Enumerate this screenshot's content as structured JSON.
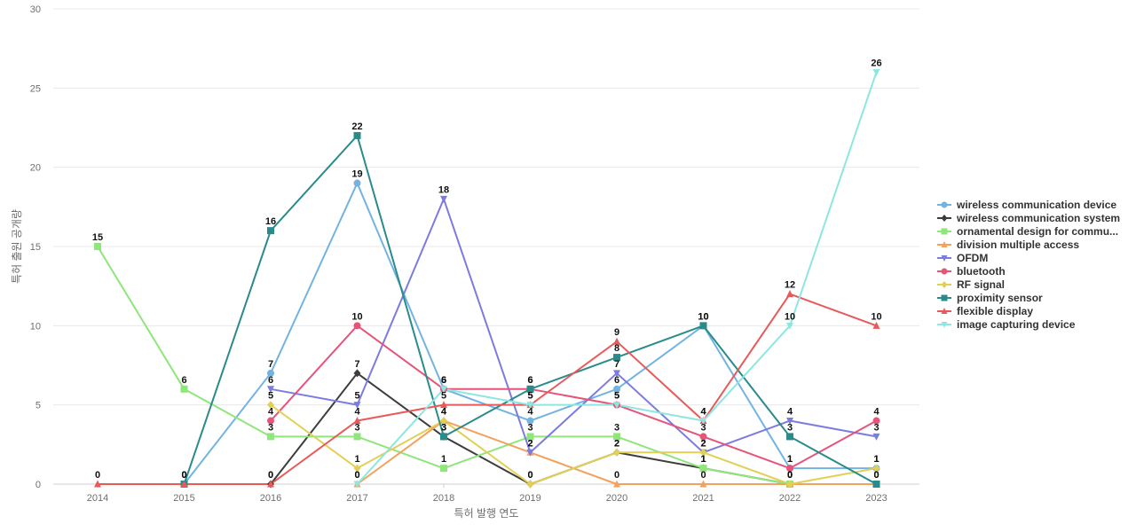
{
  "chart_data": {
    "type": "line",
    "title": "",
    "xlabel": "특허 발행 연도",
    "ylabel": "특허 출원 공개량",
    "x": [
      "2014",
      "2015",
      "2016",
      "2017",
      "2018",
      "2019",
      "2020",
      "2021",
      "2022",
      "2023"
    ],
    "ylim": [
      0,
      30
    ],
    "yticks": [
      0,
      5,
      10,
      15,
      20,
      25,
      30
    ],
    "grid": true,
    "legend_position": "right",
    "series": [
      {
        "name": "wireless communication device",
        "color": "#73b3e2",
        "marker": "circle",
        "values": [
          null,
          0,
          7,
          19,
          6,
          4,
          6,
          10,
          1,
          1
        ]
      },
      {
        "name": "wireless communication system",
        "color": "#3d3d3d",
        "marker": "diamond",
        "values": [
          null,
          null,
          0,
          7,
          3,
          0,
          2,
          1,
          0,
          null
        ]
      },
      {
        "name": "ornamental design for commu...",
        "color": "#8fe67a",
        "marker": "square",
        "values": [
          15,
          6,
          3,
          3,
          1,
          3,
          3,
          1,
          0,
          null
        ]
      },
      {
        "name": "division multiple access",
        "color": "#f4a15d",
        "marker": "triangle",
        "values": [
          null,
          null,
          null,
          0,
          4,
          2,
          0,
          0,
          0,
          0
        ]
      },
      {
        "name": "OFDM",
        "color": "#7b7be0",
        "marker": "triangle-down",
        "values": [
          null,
          null,
          6,
          5,
          18,
          2,
          7,
          2,
          4,
          3
        ]
      },
      {
        "name": "bluetooth",
        "color": "#e6547a",
        "marker": "circle",
        "values": [
          null,
          null,
          4,
          10,
          6,
          6,
          5,
          3,
          1,
          4
        ]
      },
      {
        "name": "RF signal",
        "color": "#e2d056",
        "marker": "diamond",
        "values": [
          null,
          null,
          5,
          1,
          4,
          0,
          2,
          2,
          0,
          1
        ]
      },
      {
        "name": "proximity sensor",
        "color": "#2a8b8b",
        "marker": "square",
        "values": [
          null,
          0,
          16,
          22,
          3,
          6,
          8,
          10,
          3,
          0
        ]
      },
      {
        "name": "flexible display",
        "color": "#e85a5a",
        "marker": "triangle",
        "values": [
          0,
          0,
          0,
          4,
          5,
          5,
          9,
          4,
          12,
          10
        ]
      },
      {
        "name": "image capturing device",
        "color": "#8ee6e0",
        "marker": "triangle-down",
        "values": [
          null,
          null,
          null,
          0,
          6,
          5,
          5,
          4,
          10,
          26
        ]
      }
    ]
  }
}
